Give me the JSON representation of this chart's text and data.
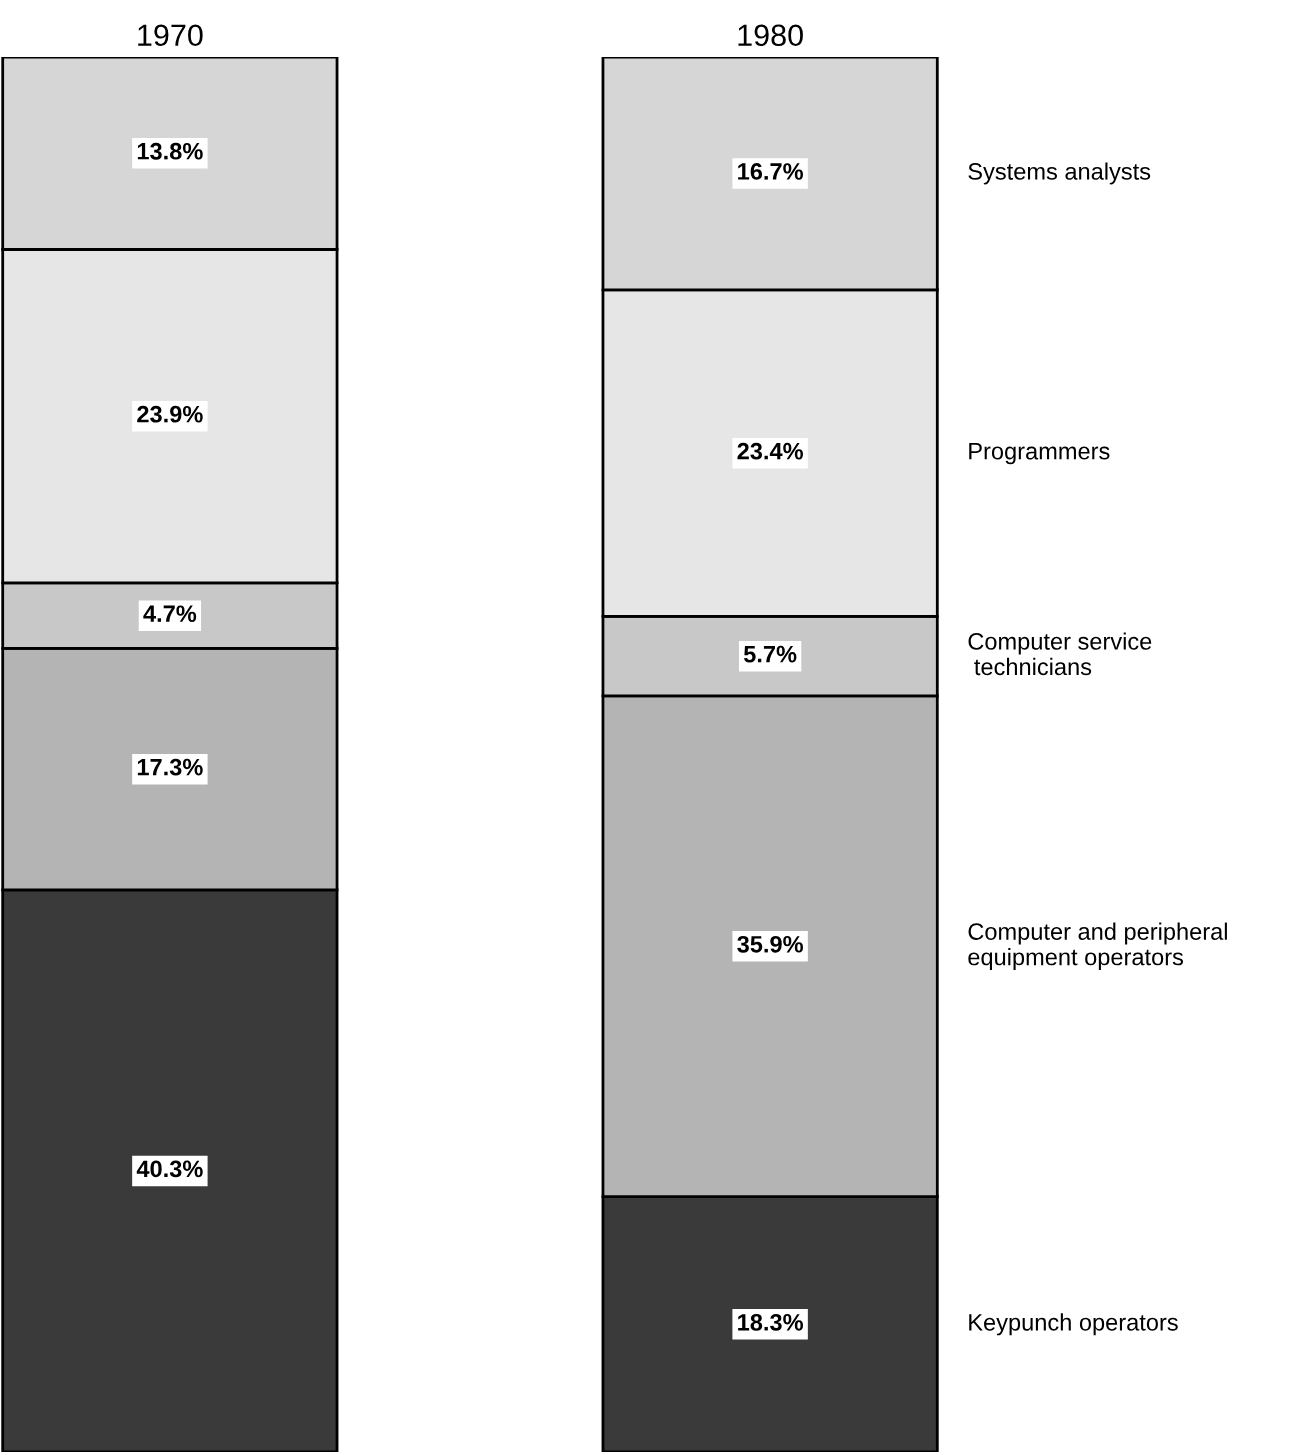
{
  "chart_data": {
    "type": "bar",
    "stacked": true,
    "categories": [
      "1970",
      "1980"
    ],
    "series": [
      {
        "name": "Keypunch operators",
        "color": "#3a3a3a",
        "values": [
          40.3,
          18.3
        ],
        "value_labels": [
          "40.3%",
          "18.3%"
        ]
      },
      {
        "name": "Computer and peripheral\nequipment operators",
        "color": "#b4b4b4",
        "values": [
          17.3,
          35.9
        ],
        "value_labels": [
          "17.3%",
          "35.9%"
        ]
      },
      {
        "name": "Computer service\n technicians",
        "color": "#c8c8c8",
        "values": [
          4.7,
          5.7
        ],
        "value_labels": [
          "4.7%",
          "5.7%"
        ]
      },
      {
        "name": "Programmers",
        "color": "#e6e6e6",
        "values": [
          23.9,
          23.4
        ],
        "value_labels": [
          "23.9%",
          "23.4%"
        ]
      },
      {
        "name": "Systems analysts",
        "color": "#d6d6d6",
        "values": [
          13.8,
          16.7
        ],
        "value_labels": [
          "13.8%",
          "16.7%"
        ]
      }
    ],
    "tick_labels": "x",
    "legend": false
  }
}
